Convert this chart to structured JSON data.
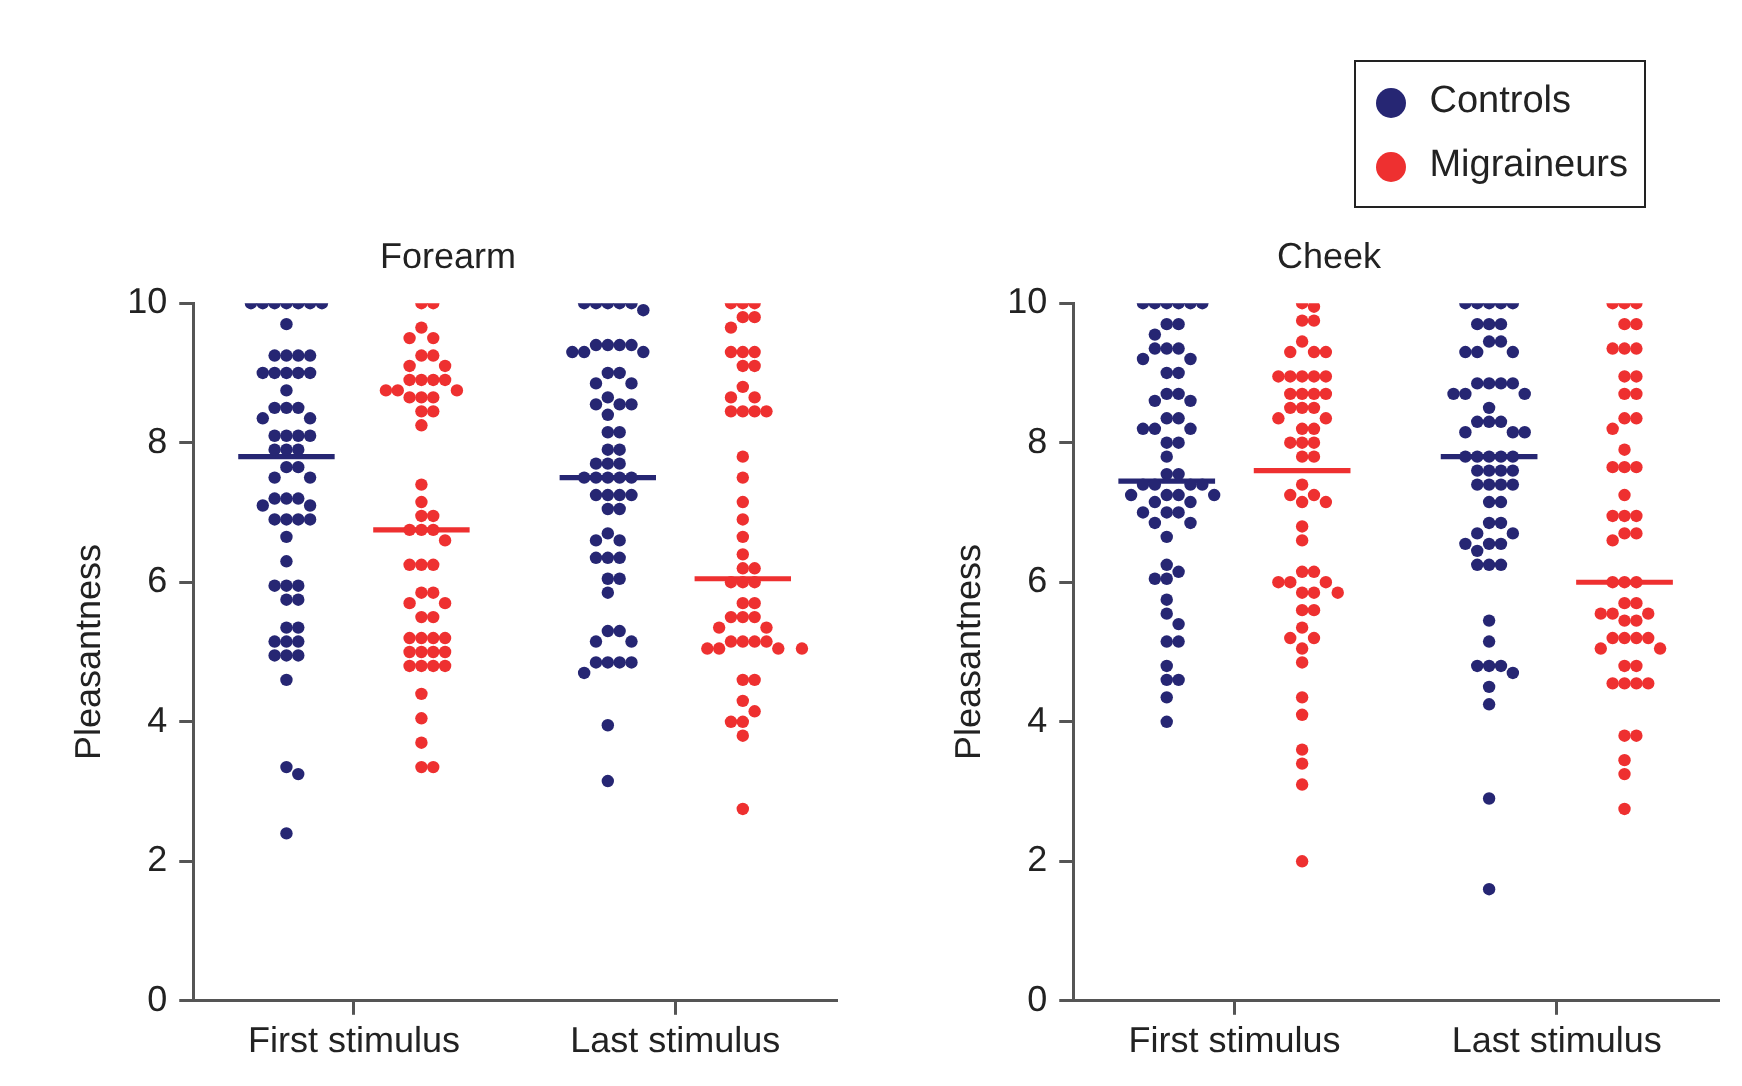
{
  "chart_data": [
    {
      "type": "scatter",
      "title": "Forearm",
      "ylabel": "Pleasantness",
      "categories": [
        "First stimulus",
        "Last stimulus"
      ],
      "ylim": [
        0,
        10
      ],
      "yticks": [
        0,
        2,
        4,
        6,
        8,
        10
      ],
      "marker": "circle",
      "series": [
        {
          "color": "#262673",
          "x": [
            "First stimulus",
            "First stimulus",
            "First stimulus",
            "First stimulus",
            "First stimulus",
            "First stimulus",
            "First stimulus",
            "First stimulus",
            "First stimulus",
            "First stimulus",
            "First stimulus",
            "First stimulus",
            "First stimulus",
            "First stimulus",
            "First stimulus",
            "First stimulus",
            "First stimulus",
            "First stimulus",
            "First stimulus",
            "First stimulus",
            "First stimulus",
            "First stimulus",
            "First stimulus",
            "First stimulus",
            "First stimulus",
            "First stimulus",
            "First stimulus",
            "First stimulus",
            "First stimulus",
            "First stimulus",
            "First stimulus",
            "First stimulus",
            "First stimulus",
            "First stimulus",
            "First stimulus",
            "First stimulus",
            "First stimulus",
            "First stimulus",
            "First stimulus",
            "First stimulus",
            "First stimulus",
            "First stimulus",
            "First stimulus",
            "First stimulus",
            "First stimulus",
            "First stimulus",
            "First stimulus",
            "First stimulus",
            "First stimulus",
            "First stimulus",
            "First stimulus",
            "First stimulus",
            "First stimulus",
            "First stimulus",
            "First stimulus",
            "First stimulus",
            "First stimulus",
            "First stimulus",
            "First stimulus",
            "First stimulus",
            "First stimulus",
            "First stimulus",
            "Last stimulus",
            "Last stimulus",
            "Last stimulus",
            "Last stimulus",
            "Last stimulus",
            "Last stimulus",
            "Last stimulus",
            "Last stimulus",
            "Last stimulus",
            "Last stimulus",
            "Last stimulus",
            "Last stimulus",
            "Last stimulus",
            "Last stimulus",
            "Last stimulus",
            "Last stimulus",
            "Last stimulus",
            "Last stimulus",
            "Last stimulus",
            "Last stimulus",
            "Last stimulus",
            "Last stimulus",
            "Last stimulus",
            "Last stimulus",
            "Last stimulus",
            "Last stimulus",
            "Last stimulus",
            "Last stimulus",
            "Last stimulus",
            "Last stimulus",
            "Last stimulus",
            "Last stimulus",
            "Last stimulus",
            "Last stimulus",
            "Last stimulus",
            "Last stimulus",
            "Last stimulus",
            "Last stimulus",
            "Last stimulus",
            "Last stimulus",
            "Last stimulus",
            "Last stimulus",
            "Last stimulus",
            "Last stimulus",
            "Last stimulus",
            "Last stimulus",
            "Last stimulus",
            "Last stimulus",
            "Last stimulus",
            "Last stimulus",
            "Last stimulus",
            "Last stimulus",
            "Last stimulus",
            "Last stimulus",
            "Last stimulus",
            "Last stimulus",
            "Last stimulus",
            "Last stimulus",
            "Last stimulus",
            "Last stimulus"
          ],
          "values": [
            10,
            10,
            10,
            10,
            10,
            10,
            10,
            9.7,
            9.25,
            9.25,
            9.25,
            9.25,
            9,
            9,
            9,
            9,
            9,
            8.75,
            8.5,
            8.5,
            8.5,
            8.35,
            8.35,
            8.1,
            8.1,
            8.1,
            8.1,
            7.9,
            7.9,
            7.9,
            7.65,
            7.65,
            7.5,
            7.5,
            7.2,
            7.2,
            7.2,
            7.1,
            7.1,
            6.9,
            6.9,
            6.9,
            6.9,
            6.65,
            6.3,
            5.95,
            5.95,
            5.95,
            5.75,
            5.75,
            5.35,
            5.35,
            5.15,
            5.15,
            5.15,
            4.95,
            4.95,
            4.95,
            4.6,
            3.35,
            3.25,
            2.4,
            10,
            10,
            10,
            10,
            10,
            9.9,
            9.4,
            9.4,
            9.4,
            9.4,
            9.3,
            9.3,
            9.3,
            9,
            9,
            8.85,
            8.85,
            8.65,
            8.55,
            8.55,
            8.55,
            8.4,
            8.15,
            8.15,
            7.9,
            7.9,
            7.7,
            7.7,
            7.7,
            7.5,
            7.5,
            7.5,
            7.5,
            7.5,
            7.25,
            7.25,
            7.25,
            7.25,
            7.05,
            7.05,
            6.7,
            6.6,
            6.6,
            6.35,
            6.35,
            6.35,
            6.05,
            6.05,
            5.85,
            5.3,
            5.3,
            5.15,
            5.15,
            4.85,
            4.85,
            4.85,
            4.85,
            4.7,
            3.95,
            3.15
          ]
        },
        {
          "color": "#ee3030",
          "x": [
            "First stimulus",
            "First stimulus",
            "First stimulus",
            "First stimulus",
            "First stimulus",
            "First stimulus",
            "First stimulus",
            "First stimulus",
            "First stimulus",
            "First stimulus",
            "First stimulus",
            "First stimulus",
            "First stimulus",
            "First stimulus",
            "First stimulus",
            "First stimulus",
            "First stimulus",
            "First stimulus",
            "First stimulus",
            "First stimulus",
            "First stimulus",
            "First stimulus",
            "First stimulus",
            "First stimulus",
            "First stimulus",
            "First stimulus",
            "First stimulus",
            "First stimulus",
            "First stimulus",
            "First stimulus",
            "First stimulus",
            "First stimulus",
            "First stimulus",
            "First stimulus",
            "First stimulus",
            "First stimulus",
            "First stimulus",
            "First stimulus",
            "First stimulus",
            "First stimulus",
            "First stimulus",
            "First stimulus",
            "First stimulus",
            "First stimulus",
            "First stimulus",
            "First stimulus",
            "First stimulus",
            "First stimulus",
            "First stimulus",
            "First stimulus",
            "First stimulus",
            "First stimulus",
            "First stimulus",
            "First stimulus",
            "First stimulus",
            "First stimulus",
            "Last stimulus",
            "Last stimulus",
            "Last stimulus",
            "Last stimulus",
            "Last stimulus",
            "Last stimulus",
            "Last stimulus",
            "Last stimulus",
            "Last stimulus",
            "Last stimulus",
            "Last stimulus",
            "Last stimulus",
            "Last stimulus",
            "Last stimulus",
            "Last stimulus",
            "Last stimulus",
            "Last stimulus",
            "Last stimulus",
            "Last stimulus",
            "Last stimulus",
            "Last stimulus",
            "Last stimulus",
            "Last stimulus",
            "Last stimulus",
            "Last stimulus",
            "Last stimulus",
            "Last stimulus",
            "Last stimulus",
            "Last stimulus",
            "Last stimulus",
            "Last stimulus",
            "Last stimulus",
            "Last stimulus",
            "Last stimulus",
            "Last stimulus",
            "Last stimulus",
            "Last stimulus",
            "Last stimulus",
            "Last stimulus",
            "Last stimulus",
            "Last stimulus",
            "Last stimulus",
            "Last stimulus",
            "Last stimulus",
            "Last stimulus",
            "Last stimulus",
            "Last stimulus",
            "Last stimulus",
            "Last stimulus",
            "Last stimulus",
            "Last stimulus",
            "Last stimulus"
          ],
          "values": [
            10,
            10,
            9.65,
            9.5,
            9.5,
            9.25,
            9.25,
            9.1,
            9.1,
            8.9,
            8.9,
            8.9,
            8.9,
            8.75,
            8.75,
            8.75,
            8.65,
            8.65,
            8.65,
            8.45,
            8.45,
            8.25,
            7.4,
            7.15,
            6.95,
            6.95,
            6.75,
            6.75,
            6.75,
            6.6,
            6.25,
            6.25,
            6.25,
            5.85,
            5.85,
            5.7,
            5.7,
            5.5,
            5.5,
            5.2,
            5.2,
            5.2,
            5.2,
            5,
            5,
            5,
            5,
            4.8,
            4.8,
            4.8,
            4.8,
            4.4,
            4.05,
            3.7,
            3.35,
            3.35,
            10,
            10,
            10,
            9.8,
            9.8,
            9.65,
            9.3,
            9.3,
            9.3,
            9.1,
            9.1,
            8.8,
            8.65,
            8.65,
            8.45,
            8.45,
            8.45,
            8.45,
            7.8,
            7.5,
            7.15,
            6.9,
            6.65,
            6.4,
            6.2,
            6.2,
            6,
            6,
            6,
            5.7,
            5.7,
            5.5,
            5.5,
            5.5,
            5.35,
            5.35,
            5.15,
            5.15,
            5.15,
            5.15,
            5.05,
            5.05,
            5.05,
            5.05,
            4.6,
            4.6,
            4.3,
            4.15,
            4,
            4,
            3.8,
            2.75
          ]
        },
        {
          "type": "box",
          "color": "#262673",
          "boxes": [
            {
              "low": 7.8,
              "q1": 7.8,
              "median": 7.8,
              "q3": 7.8,
              "high": 7.8
            },
            {
              "low": 7.5,
              "q1": 7.5,
              "median": 7.5,
              "q3": 7.5,
              "high": 7.5
            }
          ]
        },
        {
          "type": "box",
          "color": "#ee3030",
          "boxes": [
            {
              "low": 6.75,
              "q1": 6.75,
              "median": 6.75,
              "q3": 6.75,
              "high": 6.75
            },
            {
              "low": 6.05,
              "q1": 6.05,
              "median": 6.05,
              "q3": 6.05,
              "high": 6.05
            }
          ]
        }
      ]
    },
    {
      "type": "scatter",
      "title": "Cheek",
      "ylabel": "Pleasantness",
      "categories": [
        "First stimulus",
        "Last stimulus"
      ],
      "ylim": [
        0,
        10
      ],
      "yticks": [
        0,
        2,
        4,
        6,
        8,
        10
      ],
      "marker": "circle",
      "legend": "top right",
      "series": [
        {
          "name": "Controls",
          "color": "#262673",
          "x": [
            "First stimulus",
            "First stimulus",
            "First stimulus",
            "First stimulus",
            "First stimulus",
            "First stimulus",
            "First stimulus",
            "First stimulus",
            "First stimulus",
            "First stimulus",
            "First stimulus",
            "First stimulus",
            "First stimulus",
            "First stimulus",
            "First stimulus",
            "First stimulus",
            "First stimulus",
            "First stimulus",
            "First stimulus",
            "First stimulus",
            "First stimulus",
            "First stimulus",
            "First stimulus",
            "First stimulus",
            "First stimulus",
            "First stimulus",
            "First stimulus",
            "First stimulus",
            "First stimulus",
            "First stimulus",
            "First stimulus",
            "First stimulus",
            "First stimulus",
            "First stimulus",
            "First stimulus",
            "First stimulus",
            "First stimulus",
            "First stimulus",
            "First stimulus",
            "First stimulus",
            "First stimulus",
            "First stimulus",
            "First stimulus",
            "First stimulus",
            "First stimulus",
            "First stimulus",
            "First stimulus",
            "First stimulus",
            "First stimulus",
            "First stimulus",
            "First stimulus",
            "First stimulus",
            "First stimulus",
            "First stimulus",
            "First stimulus",
            "First stimulus",
            "First stimulus",
            "First stimulus",
            "First stimulus",
            "First stimulus",
            "Last stimulus",
            "Last stimulus",
            "Last stimulus",
            "Last stimulus",
            "Last stimulus",
            "Last stimulus",
            "Last stimulus",
            "Last stimulus",
            "Last stimulus",
            "Last stimulus",
            "Last stimulus",
            "Last stimulus",
            "Last stimulus",
            "Last stimulus",
            "Last stimulus",
            "Last stimulus",
            "Last stimulus",
            "Last stimulus",
            "Last stimulus",
            "Last stimulus",
            "Last stimulus",
            "Last stimulus",
            "Last stimulus",
            "Last stimulus",
            "Last stimulus",
            "Last stimulus",
            "Last stimulus",
            "Last stimulus",
            "Last stimulus",
            "Last stimulus",
            "Last stimulus",
            "Last stimulus",
            "Last stimulus",
            "Last stimulus",
            "Last stimulus",
            "Last stimulus",
            "Last stimulus",
            "Last stimulus",
            "Last stimulus",
            "Last stimulus",
            "Last stimulus",
            "Last stimulus",
            "Last stimulus",
            "Last stimulus",
            "Last stimulus",
            "Last stimulus",
            "Last stimulus",
            "Last stimulus",
            "Last stimulus",
            "Last stimulus",
            "Last stimulus",
            "Last stimulus",
            "Last stimulus",
            "Last stimulus",
            "Last stimulus",
            "Last stimulus",
            "Last stimulus",
            "Last stimulus",
            "Last stimulus",
            "Last stimulus",
            "Last stimulus",
            "Last stimulus",
            "Last stimulus"
          ],
          "values": [
            10,
            10,
            10,
            10,
            10,
            10,
            9.7,
            9.7,
            9.55,
            9.35,
            9.35,
            9.35,
            9.2,
            9.2,
            9,
            9,
            8.7,
            8.7,
            8.6,
            8.6,
            8.35,
            8.35,
            8.2,
            8.2,
            8.2,
            8,
            8,
            7.8,
            7.55,
            7.55,
            7.4,
            7.4,
            7.4,
            7.4,
            7.25,
            7.25,
            7.25,
            7.25,
            7.15,
            7.15,
            7,
            7,
            7,
            6.85,
            6.85,
            6.65,
            6.25,
            6.15,
            6.05,
            6.05,
            5.75,
            5.55,
            5.4,
            5.15,
            5.15,
            4.8,
            4.6,
            4.6,
            4.35,
            4,
            10,
            10,
            10,
            10,
            10,
            9.7,
            9.7,
            9.7,
            9.45,
            9.45,
            9.3,
            9.3,
            9.3,
            8.85,
            8.85,
            8.85,
            8.85,
            8.7,
            8.7,
            8.7,
            8.5,
            8.3,
            8.3,
            8.3,
            8.15,
            8.15,
            8.15,
            7.8,
            7.8,
            7.8,
            7.8,
            7.8,
            7.6,
            7.6,
            7.6,
            7.6,
            7.4,
            7.4,
            7.4,
            7.4,
            7.15,
            7.15,
            6.85,
            6.85,
            6.7,
            6.7,
            6.55,
            6.55,
            6.55,
            6.45,
            6.25,
            6.25,
            6.25,
            5.45,
            5.15,
            4.8,
            4.8,
            4.8,
            4.7,
            4.5,
            4.25,
            2.9,
            1.6
          ]
        },
        {
          "name": "Migraineurs",
          "color": "#ee3030",
          "x": [
            "First stimulus",
            "First stimulus",
            "First stimulus",
            "First stimulus",
            "First stimulus",
            "First stimulus",
            "First stimulus",
            "First stimulus",
            "First stimulus",
            "First stimulus",
            "First stimulus",
            "First stimulus",
            "First stimulus",
            "First stimulus",
            "First stimulus",
            "First stimulus",
            "First stimulus",
            "First stimulus",
            "First stimulus",
            "First stimulus",
            "First stimulus",
            "First stimulus",
            "First stimulus",
            "First stimulus",
            "First stimulus",
            "First stimulus",
            "First stimulus",
            "First stimulus",
            "First stimulus",
            "First stimulus",
            "First stimulus",
            "First stimulus",
            "First stimulus",
            "First stimulus",
            "First stimulus",
            "First stimulus",
            "First stimulus",
            "First stimulus",
            "First stimulus",
            "First stimulus",
            "First stimulus",
            "First stimulus",
            "First stimulus",
            "First stimulus",
            "First stimulus",
            "First stimulus",
            "First stimulus",
            "First stimulus",
            "First stimulus",
            "First stimulus",
            "First stimulus",
            "First stimulus",
            "First stimulus",
            "First stimulus",
            "First stimulus",
            "First stimulus",
            "First stimulus",
            "Last stimulus",
            "Last stimulus",
            "Last stimulus",
            "Last stimulus",
            "Last stimulus",
            "Last stimulus",
            "Last stimulus",
            "Last stimulus",
            "Last stimulus",
            "Last stimulus",
            "Last stimulus",
            "Last stimulus",
            "Last stimulus",
            "Last stimulus",
            "Last stimulus",
            "Last stimulus",
            "Last stimulus",
            "Last stimulus",
            "Last stimulus",
            "Last stimulus",
            "Last stimulus",
            "Last stimulus",
            "Last stimulus",
            "Last stimulus",
            "Last stimulus",
            "Last stimulus",
            "Last stimulus",
            "Last stimulus",
            "Last stimulus",
            "Last stimulus",
            "Last stimulus",
            "Last stimulus",
            "Last stimulus",
            "Last stimulus",
            "Last stimulus",
            "Last stimulus",
            "Last stimulus",
            "Last stimulus",
            "Last stimulus",
            "Last stimulus",
            "Last stimulus",
            "Last stimulus",
            "Last stimulus",
            "Last stimulus",
            "Last stimulus",
            "Last stimulus",
            "Last stimulus",
            "Last stimulus",
            "Last stimulus",
            "Last stimulus",
            "Last stimulus",
            "Last stimulus",
            "Last stimulus"
          ],
          "values": [
            10,
            9.95,
            9.75,
            9.75,
            9.45,
            9.3,
            9.3,
            9.3,
            8.95,
            8.95,
            8.95,
            8.95,
            8.95,
            8.7,
            8.7,
            8.7,
            8.7,
            8.5,
            8.5,
            8.5,
            8.35,
            8.35,
            8.2,
            8.2,
            8,
            8,
            8,
            7.8,
            7.8,
            7.4,
            7.25,
            7.25,
            7.15,
            7.15,
            6.8,
            6.6,
            6.15,
            6.15,
            6,
            6,
            6,
            5.85,
            5.85,
            5.85,
            5.6,
            5.6,
            5.35,
            5.2,
            5.2,
            5.05,
            4.85,
            4.35,
            4.1,
            3.6,
            3.4,
            3.1,
            2,
            10,
            10,
            10,
            9.7,
            9.7,
            9.35,
            9.35,
            9.35,
            8.95,
            8.95,
            8.7,
            8.7,
            8.35,
            8.35,
            8.2,
            7.9,
            7.65,
            7.65,
            7.65,
            7.25,
            6.95,
            6.95,
            6.95,
            6.7,
            6.7,
            6.6,
            6,
            6,
            6,
            5.7,
            5.7,
            5.55,
            5.55,
            5.55,
            5.45,
            5.45,
            5.2,
            5.2,
            5.2,
            5.2,
            5.05,
            5.05,
            4.8,
            4.8,
            4.55,
            4.55,
            4.55,
            4.55,
            3.8,
            3.8,
            3.45,
            3.25,
            2.75
          ]
        },
        {
          "type": "box",
          "color": "#262673",
          "boxes": [
            {
              "low": 7.45,
              "q1": 7.45,
              "median": 7.45,
              "q3": 7.45,
              "high": 7.45
            },
            {
              "low": 7.8,
              "q1": 7.8,
              "median": 7.8,
              "q3": 7.8,
              "high": 7.8
            }
          ]
        },
        {
          "type": "box",
          "color": "#ee3030",
          "boxes": [
            {
              "low": 7.6,
              "q1": 7.6,
              "median": 7.6,
              "q3": 7.6,
              "high": 7.6
            },
            {
              "low": 6,
              "q1": 6,
              "median": 6,
              "q3": 6,
              "high": 6
            }
          ]
        }
      ]
    }
  ]
}
